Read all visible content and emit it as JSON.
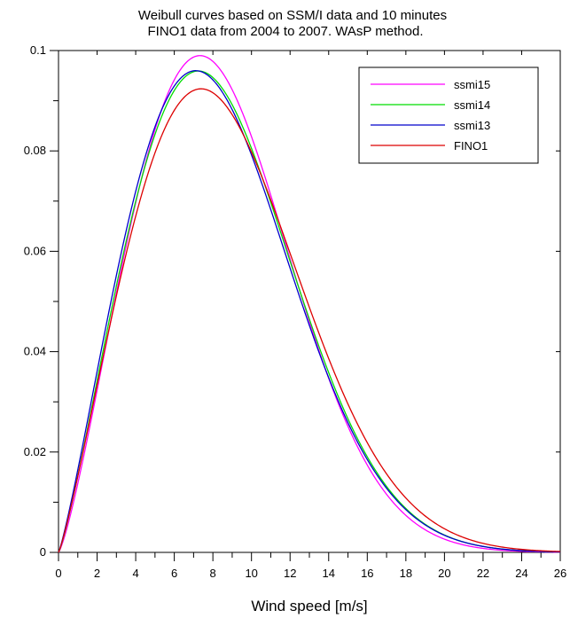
{
  "chart_data": {
    "type": "line",
    "title_lines": [
      "Weibull curves based on SSM/I data and 10 minutes",
      "FINO1 data from 2004 to 2007. WAsP method."
    ],
    "xlabel": "Wind speed [m/s]",
    "ylabel": "",
    "xlim": [
      0,
      26
    ],
    "ylim": [
      0,
      0.1
    ],
    "xticks": [
      0,
      2,
      4,
      6,
      8,
      10,
      12,
      14,
      16,
      18,
      20,
      22,
      24,
      26
    ],
    "yticks": [
      0,
      0.02,
      0.04,
      0.06,
      0.08,
      0.1
    ],
    "ytick_labels": [
      "0",
      "0.02",
      "0.04",
      "0.06",
      "0.08",
      "0.1"
    ],
    "grid": false,
    "legend_position": "top-right",
    "series": [
      {
        "name": "ssmi15",
        "color": "#ff00ff",
        "weibull": {
          "A": 9.47,
          "k": 2.27
        }
      },
      {
        "name": "ssmi14",
        "color": "#00dd00",
        "weibull": {
          "A": 9.55,
          "k": 2.2
        }
      },
      {
        "name": "ssmi13",
        "color": "#0000cc",
        "weibull": {
          "A": 9.45,
          "k": 2.17
        }
      },
      {
        "name": "FINO1",
        "color": "#dd0000",
        "weibull": {
          "A": 9.82,
          "k": 2.17
        }
      }
    ]
  }
}
